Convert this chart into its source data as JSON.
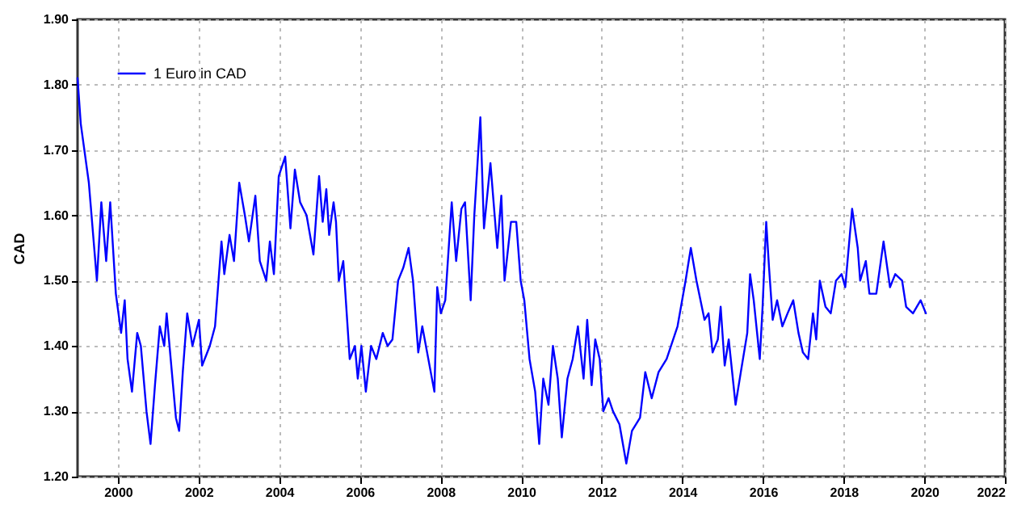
{
  "chart_data": {
    "type": "line",
    "ylabel": "CAD",
    "xlim": [
      1999,
      2022
    ],
    "ylim": [
      1.2,
      1.9
    ],
    "xticks": [
      2000,
      2002,
      2004,
      2006,
      2008,
      2010,
      2012,
      2014,
      2016,
      2018,
      2020,
      2022
    ],
    "yticks": [
      {
        "value": 1.2,
        "label": "1.20"
      },
      {
        "value": 1.3,
        "label": "1.30"
      },
      {
        "value": 1.4,
        "label": "1.40"
      },
      {
        "value": 1.5,
        "label": "1.50"
      },
      {
        "value": 1.6,
        "label": "1.60"
      },
      {
        "value": 1.7,
        "label": "1.70"
      },
      {
        "value": 1.8,
        "label": "1.80"
      },
      {
        "value": 1.9,
        "label": "1.90"
      }
    ],
    "grid": true,
    "legend": "top left",
    "line_style": "solid",
    "marker": "none",
    "series": [
      {
        "name": "1 Euro in CAD",
        "color": "#0000ff",
        "x": [
          1999.0,
          1999.08,
          1999.28,
          1999.48,
          1999.59,
          1999.71,
          1999.81,
          1999.95,
          2000.08,
          2000.17,
          2000.24,
          2000.35,
          2000.48,
          2000.57,
          2000.71,
          2000.81,
          2000.92,
          2001.04,
          2001.15,
          2001.21,
          2001.31,
          2001.44,
          2001.52,
          2001.61,
          2001.72,
          2001.85,
          2002.01,
          2002.09,
          2002.28,
          2002.41,
          2002.57,
          2002.64,
          2002.77,
          2002.88,
          2003.01,
          2003.15,
          2003.25,
          2003.41,
          2003.52,
          2003.68,
          2003.77,
          2003.87,
          2003.99,
          2004.15,
          2004.28,
          2004.39,
          2004.52,
          2004.68,
          2004.85,
          2004.99,
          2005.08,
          2005.17,
          2005.24,
          2005.35,
          2005.41,
          2005.48,
          2005.59,
          2005.75,
          2005.88,
          2005.95,
          2006.04,
          2006.15,
          2006.28,
          2006.41,
          2006.57,
          2006.69,
          2006.81,
          2006.95,
          2007.08,
          2007.21,
          2007.32,
          2007.45,
          2007.55,
          2007.67,
          2007.85,
          2007.92,
          2008.01,
          2008.12,
          2008.28,
          2008.39,
          2008.52,
          2008.61,
          2008.75,
          2008.84,
          2008.99,
          2009.08,
          2009.24,
          2009.41,
          2009.51,
          2009.59,
          2009.75,
          2009.88,
          2009.99,
          2010.08,
          2010.21,
          2010.35,
          2010.45,
          2010.55,
          2010.68,
          2010.79,
          2010.91,
          2011.01,
          2011.15,
          2011.28,
          2011.41,
          2011.55,
          2011.64,
          2011.75,
          2011.84,
          2011.95,
          2012.04,
          2012.17,
          2012.28,
          2012.44,
          2012.61,
          2012.75,
          2012.95,
          2013.08,
          2013.24,
          2013.41,
          2013.61,
          2013.88,
          2014.08,
          2014.21,
          2014.35,
          2014.55,
          2014.65,
          2014.75,
          2014.88,
          2014.95,
          2015.05,
          2015.15,
          2015.32,
          2015.45,
          2015.61,
          2015.68,
          2015.77,
          2015.92,
          2015.99,
          2016.08,
          2016.15,
          2016.24,
          2016.35,
          2016.48,
          2016.61,
          2016.75,
          2016.88,
          2016.99,
          2017.12,
          2017.24,
          2017.32,
          2017.41,
          2017.55,
          2017.68,
          2017.81,
          2017.95,
          2018.04,
          2018.21,
          2018.35,
          2018.41,
          2018.55,
          2018.64,
          2018.81,
          2018.99,
          2019.15,
          2019.28,
          2019.45,
          2019.55,
          2019.72,
          2019.91,
          2020.04
        ],
        "values": [
          1.81,
          1.74,
          1.65,
          1.5,
          1.62,
          1.53,
          1.62,
          1.48,
          1.42,
          1.47,
          1.38,
          1.33,
          1.42,
          1.4,
          1.3,
          1.25,
          1.34,
          1.43,
          1.4,
          1.45,
          1.38,
          1.29,
          1.27,
          1.36,
          1.45,
          1.4,
          1.44,
          1.37,
          1.4,
          1.43,
          1.56,
          1.51,
          1.57,
          1.53,
          1.65,
          1.6,
          1.56,
          1.63,
          1.53,
          1.5,
          1.56,
          1.51,
          1.66,
          1.69,
          1.58,
          1.67,
          1.62,
          1.6,
          1.54,
          1.66,
          1.59,
          1.64,
          1.57,
          1.62,
          1.59,
          1.5,
          1.53,
          1.38,
          1.4,
          1.35,
          1.4,
          1.33,
          1.4,
          1.38,
          1.42,
          1.4,
          1.41,
          1.5,
          1.52,
          1.55,
          1.5,
          1.39,
          1.43,
          1.39,
          1.33,
          1.49,
          1.45,
          1.47,
          1.62,
          1.53,
          1.61,
          1.62,
          1.47,
          1.6,
          1.75,
          1.58,
          1.68,
          1.55,
          1.63,
          1.5,
          1.59,
          1.59,
          1.5,
          1.47,
          1.38,
          1.33,
          1.25,
          1.35,
          1.31,
          1.4,
          1.35,
          1.26,
          1.35,
          1.38,
          1.43,
          1.35,
          1.44,
          1.34,
          1.41,
          1.38,
          1.3,
          1.32,
          1.3,
          1.28,
          1.22,
          1.27,
          1.29,
          1.36,
          1.32,
          1.36,
          1.38,
          1.43,
          1.5,
          1.55,
          1.5,
          1.44,
          1.45,
          1.39,
          1.41,
          1.46,
          1.37,
          1.41,
          1.31,
          1.36,
          1.42,
          1.51,
          1.47,
          1.38,
          1.46,
          1.59,
          1.52,
          1.44,
          1.47,
          1.43,
          1.45,
          1.47,
          1.42,
          1.39,
          1.38,
          1.45,
          1.41,
          1.5,
          1.46,
          1.45,
          1.5,
          1.51,
          1.49,
          1.61,
          1.55,
          1.5,
          1.53,
          1.48,
          1.48,
          1.56,
          1.49,
          1.51,
          1.5,
          1.46,
          1.45,
          1.47,
          1.45
        ]
      }
    ]
  }
}
